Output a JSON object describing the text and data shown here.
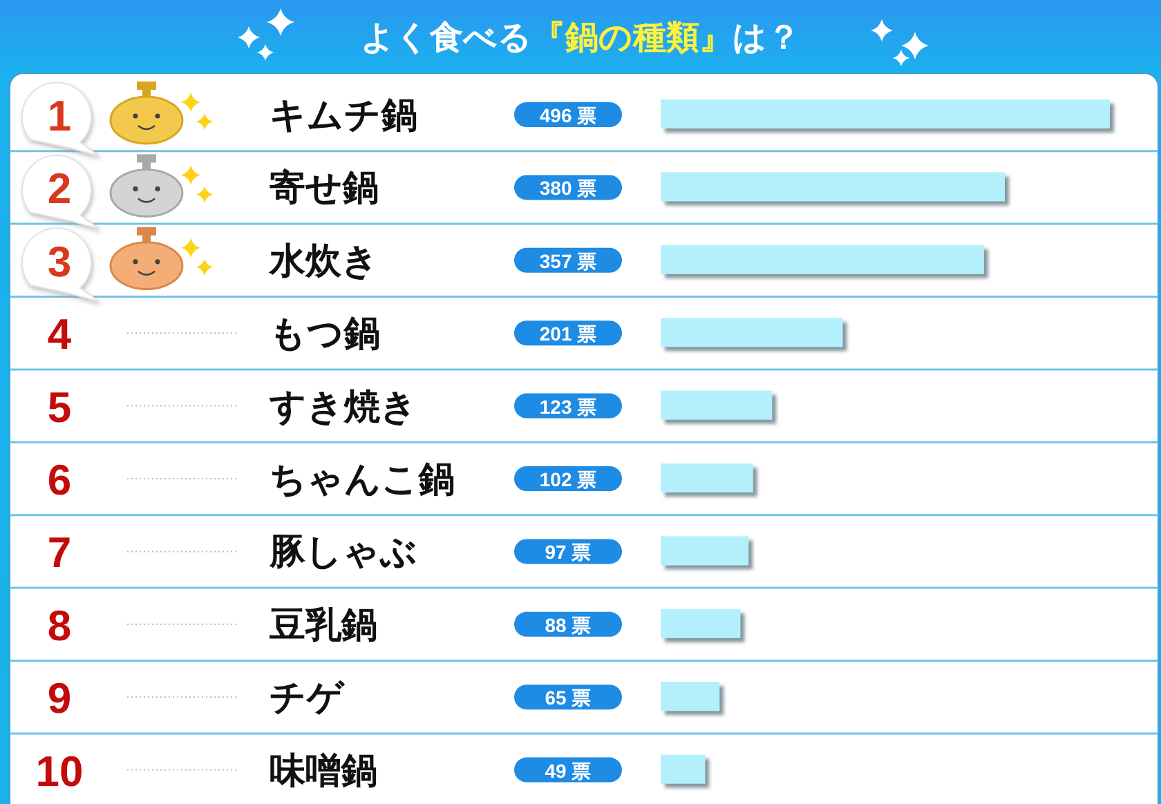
{
  "chart_data": {
    "type": "bar",
    "orientation": "horizontal",
    "title": "よく食べる**『鍋の種類』**は？",
    "categories": [
      "キムチ鍋",
      "寄せ鍋",
      "水炊き",
      "もつ鍋",
      "すき焼き",
      "ちゃんこ鍋",
      "豚しゃぶ",
      "豆乳鍋",
      "チゲ",
      "味噌鍋"
    ],
    "values": [
      496,
      380,
      357,
      201,
      123,
      102,
      97,
      88,
      65,
      49
    ],
    "value_labels": [
      "496 票",
      "380 票",
      "357 票",
      "201 票",
      "123 票",
      "102 票",
      "97 票",
      "88 票",
      "65 票",
      "49 票"
    ],
    "color": "#b3f0fc",
    "annotations": [
      "1",
      "2",
      "3",
      "4",
      "5",
      "6",
      "7",
      "8",
      "9",
      "10"
    ]
  }
}
